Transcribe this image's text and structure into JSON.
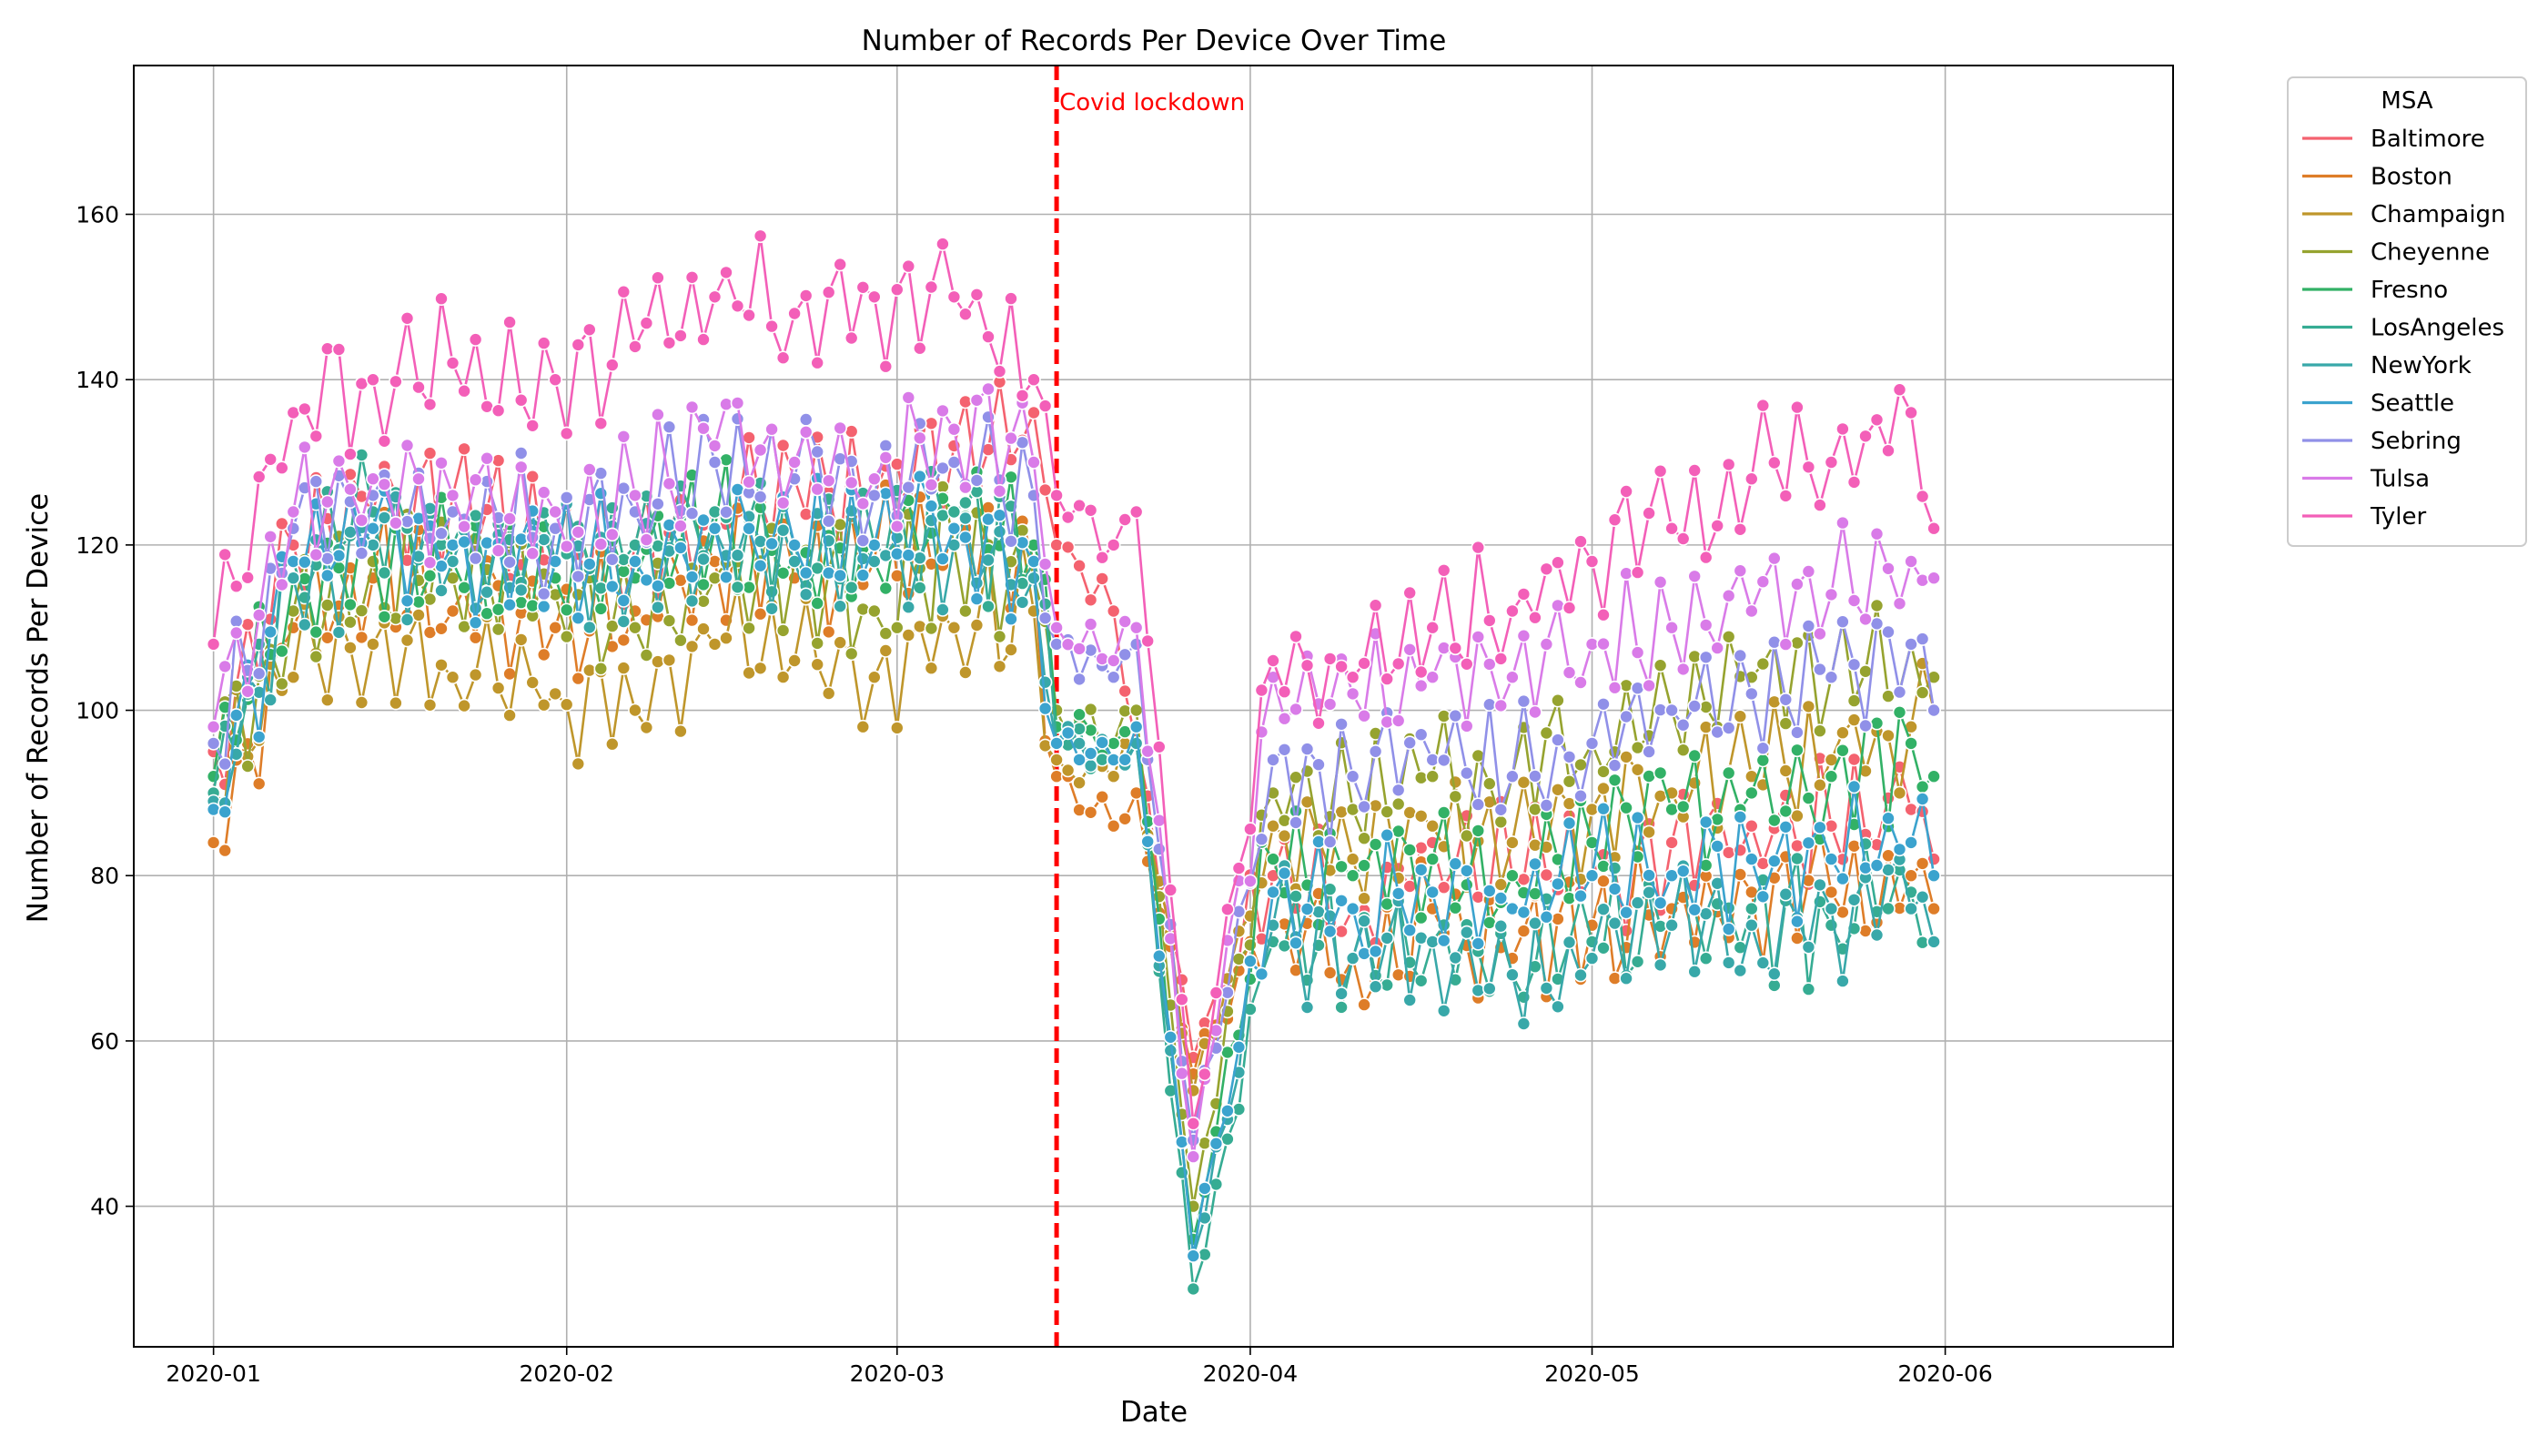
{
  "chart_data": {
    "type": "line",
    "title": "Number of Records Per Device Over Time",
    "xlabel": "Date",
    "ylabel": "Number of Records Per Device",
    "x_ticks": [
      "2020-01",
      "2020-02",
      "2020-03",
      "2020-04",
      "2020-05",
      "2020-06"
    ],
    "y_ticks": [
      40,
      60,
      80,
      100,
      120,
      140,
      160
    ],
    "xlim": [
      "2019-12-25",
      "2020-06-21"
    ],
    "ylim": [
      23,
      178
    ],
    "grid": true,
    "legend": {
      "title": "MSA",
      "placement": "outside-top-right"
    },
    "annotation": {
      "text": "Covid lockdown",
      "date": "2020-03-15",
      "color": "#ff0000"
    },
    "series": [
      {
        "name": "Baltimore",
        "color": "#f4626f",
        "values": [
          [
            1,
            95
          ],
          [
            8,
            120
          ],
          [
            15,
            124
          ],
          [
            22,
            126
          ],
          [
            31,
            118
          ],
          [
            38,
            120
          ],
          [
            45,
            124
          ],
          [
            52,
            128
          ],
          [
            59,
            126
          ],
          [
            66,
            132
          ],
          [
            73,
            136
          ],
          [
            75,
            120
          ],
          [
            80,
            112
          ],
          [
            82,
            96
          ],
          [
            87,
            58
          ],
          [
            94,
            80
          ],
          [
            101,
            76
          ],
          [
            108,
            84
          ],
          [
            115,
            80
          ],
          [
            122,
            80
          ],
          [
            129,
            84
          ],
          [
            136,
            86
          ],
          [
            143,
            86
          ],
          [
            150,
            88
          ],
          [
            152,
            82
          ]
        ]
      },
      {
        "name": "Boston",
        "color": "#de7d28",
        "values": [
          [
            1,
            84
          ],
          [
            8,
            110
          ],
          [
            15,
            116
          ],
          [
            22,
            112
          ],
          [
            31,
            110
          ],
          [
            38,
            112
          ],
          [
            45,
            118
          ],
          [
            52,
            116
          ],
          [
            59,
            118
          ],
          [
            66,
            122
          ],
          [
            73,
            118
          ],
          [
            75,
            92
          ],
          [
            80,
            86
          ],
          [
            82,
            90
          ],
          [
            87,
            56
          ],
          [
            94,
            74
          ],
          [
            101,
            70
          ],
          [
            108,
            76
          ],
          [
            115,
            70
          ],
          [
            122,
            74
          ],
          [
            129,
            76
          ],
          [
            136,
            78
          ],
          [
            143,
            78
          ],
          [
            150,
            80
          ],
          [
            152,
            76
          ]
        ]
      },
      {
        "name": "Champaign",
        "color": "#bf962b",
        "values": [
          [
            1,
            90
          ],
          [
            8,
            104
          ],
          [
            15,
            108
          ],
          [
            22,
            104
          ],
          [
            31,
            102
          ],
          [
            38,
            100
          ],
          [
            45,
            108
          ],
          [
            52,
            106
          ],
          [
            59,
            104
          ],
          [
            66,
            110
          ],
          [
            73,
            112
          ],
          [
            75,
            94
          ],
          [
            80,
            92
          ],
          [
            82,
            96
          ],
          [
            87,
            54
          ],
          [
            94,
            86
          ],
          [
            101,
            82
          ],
          [
            108,
            86
          ],
          [
            115,
            84
          ],
          [
            122,
            88
          ],
          [
            129,
            90
          ],
          [
            136,
            92
          ],
          [
            143,
            94
          ],
          [
            150,
            98
          ],
          [
            152,
            100
          ]
        ]
      },
      {
        "name": "Cheyenne",
        "color": "#96a32f",
        "values": [
          [
            1,
            92
          ],
          [
            8,
            112
          ],
          [
            15,
            118
          ],
          [
            22,
            116
          ],
          [
            31,
            114
          ],
          [
            38,
            110
          ],
          [
            45,
            116
          ],
          [
            52,
            118
          ],
          [
            59,
            112
          ],
          [
            66,
            120
          ],
          [
            73,
            116
          ],
          [
            75,
            100
          ],
          [
            80,
            96
          ],
          [
            82,
            100
          ],
          [
            87,
            40
          ],
          [
            94,
            90
          ],
          [
            101,
            88
          ],
          [
            108,
            92
          ],
          [
            115,
            92
          ],
          [
            122,
            96
          ],
          [
            129,
            100
          ],
          [
            136,
            104
          ],
          [
            143,
            104
          ],
          [
            150,
            108
          ],
          [
            152,
            104
          ]
        ]
      },
      {
        "name": "Fresno",
        "color": "#32b166",
        "values": [
          [
            1,
            92
          ],
          [
            8,
            116
          ],
          [
            15,
            120
          ],
          [
            22,
            118
          ],
          [
            31,
            116
          ],
          [
            38,
            116
          ],
          [
            45,
            122
          ],
          [
            52,
            118
          ],
          [
            59,
            118
          ],
          [
            66,
            124
          ],
          [
            73,
            120
          ],
          [
            75,
            98
          ],
          [
            80,
            96
          ],
          [
            82,
            98
          ],
          [
            87,
            36
          ],
          [
            94,
            82
          ],
          [
            101,
            80
          ],
          [
            108,
            82
          ],
          [
            115,
            80
          ],
          [
            122,
            84
          ],
          [
            129,
            88
          ],
          [
            136,
            90
          ],
          [
            143,
            92
          ],
          [
            150,
            96
          ],
          [
            152,
            92
          ]
        ]
      },
      {
        "name": "LosAngeles",
        "color": "#36ac93",
        "values": [
          [
            1,
            90
          ],
          [
            8,
            118
          ],
          [
            15,
            124
          ],
          [
            22,
            120
          ],
          [
            31,
            118
          ],
          [
            38,
            120
          ],
          [
            45,
            124
          ],
          [
            52,
            120
          ],
          [
            59,
            120
          ],
          [
            66,
            124
          ],
          [
            73,
            118
          ],
          [
            75,
            96
          ],
          [
            80,
            94
          ],
          [
            82,
            96
          ],
          [
            87,
            30
          ],
          [
            94,
            72
          ],
          [
            101,
            70
          ],
          [
            108,
            72
          ],
          [
            115,
            68
          ],
          [
            122,
            72
          ],
          [
            129,
            74
          ],
          [
            136,
            76
          ],
          [
            143,
            74
          ],
          [
            150,
            78
          ],
          [
            152,
            72
          ]
        ]
      },
      {
        "name": "NewYork",
        "color": "#38a8a9",
        "values": [
          [
            1,
            89
          ],
          [
            8,
            116
          ],
          [
            15,
            120
          ],
          [
            22,
            118
          ],
          [
            31,
            118
          ],
          [
            38,
            118
          ],
          [
            45,
            122
          ],
          [
            52,
            118
          ],
          [
            59,
            118
          ],
          [
            66,
            120
          ],
          [
            73,
            116
          ],
          [
            75,
            96
          ],
          [
            80,
            94
          ],
          [
            82,
            96
          ],
          [
            87,
            34
          ],
          [
            94,
            74
          ],
          [
            101,
            70
          ],
          [
            108,
            72
          ],
          [
            115,
            68
          ],
          [
            122,
            70
          ],
          [
            129,
            74
          ],
          [
            136,
            74
          ],
          [
            143,
            76
          ],
          [
            150,
            76
          ],
          [
            152,
            72
          ]
        ]
      },
      {
        "name": "Seattle",
        "color": "#3ba3ce",
        "values": [
          [
            1,
            88
          ],
          [
            8,
            118
          ],
          [
            15,
            122
          ],
          [
            22,
            120
          ],
          [
            31,
            118
          ],
          [
            38,
            118
          ],
          [
            45,
            122
          ],
          [
            52,
            120
          ],
          [
            59,
            120
          ],
          [
            66,
            122
          ],
          [
            73,
            118
          ],
          [
            75,
            96
          ],
          [
            80,
            94
          ],
          [
            82,
            98
          ],
          [
            87,
            34
          ],
          [
            94,
            78
          ],
          [
            101,
            76
          ],
          [
            108,
            78
          ],
          [
            115,
            76
          ],
          [
            122,
            80
          ],
          [
            129,
            80
          ],
          [
            136,
            82
          ],
          [
            143,
            82
          ],
          [
            150,
            84
          ],
          [
            152,
            80
          ]
        ]
      },
      {
        "name": "Sebring",
        "color": "#9090e8",
        "values": [
          [
            1,
            96
          ],
          [
            8,
            122
          ],
          [
            15,
            126
          ],
          [
            22,
            124
          ],
          [
            31,
            122
          ],
          [
            38,
            124
          ],
          [
            45,
            130
          ],
          [
            52,
            128
          ],
          [
            59,
            126
          ],
          [
            66,
            130
          ],
          [
            73,
            126
          ],
          [
            75,
            108
          ],
          [
            80,
            104
          ],
          [
            82,
            108
          ],
          [
            87,
            48
          ],
          [
            94,
            94
          ],
          [
            101,
            92
          ],
          [
            108,
            94
          ],
          [
            115,
            92
          ],
          [
            122,
            96
          ],
          [
            129,
            100
          ],
          [
            136,
            102
          ],
          [
            143,
            104
          ],
          [
            150,
            108
          ],
          [
            152,
            100
          ]
        ]
      },
      {
        "name": "Tulsa",
        "color": "#d97be8",
        "values": [
          [
            1,
            98
          ],
          [
            8,
            124
          ],
          [
            15,
            128
          ],
          [
            22,
            126
          ],
          [
            31,
            124
          ],
          [
            38,
            126
          ],
          [
            45,
            132
          ],
          [
            52,
            130
          ],
          [
            59,
            128
          ],
          [
            66,
            134
          ],
          [
            73,
            130
          ],
          [
            75,
            110
          ],
          [
            80,
            106
          ],
          [
            82,
            110
          ],
          [
            87,
            46
          ],
          [
            94,
            104
          ],
          [
            101,
            102
          ],
          [
            108,
            104
          ],
          [
            115,
            104
          ],
          [
            122,
            108
          ],
          [
            129,
            110
          ],
          [
            136,
            112
          ],
          [
            143,
            114
          ],
          [
            150,
            118
          ],
          [
            152,
            116
          ]
        ]
      },
      {
        "name": "Tyler",
        "color": "#f35fb8",
        "values": [
          [
            1,
            108
          ],
          [
            8,
            136
          ],
          [
            15,
            140
          ],
          [
            22,
            142
          ],
          [
            31,
            140
          ],
          [
            38,
            144
          ],
          [
            45,
            150
          ],
          [
            52,
            148
          ],
          [
            59,
            150
          ],
          [
            66,
            150
          ],
          [
            73,
            140
          ],
          [
            75,
            126
          ],
          [
            80,
            120
          ],
          [
            82,
            124
          ],
          [
            87,
            50
          ],
          [
            94,
            106
          ],
          [
            101,
            104
          ],
          [
            108,
            110
          ],
          [
            115,
            112
          ],
          [
            122,
            118
          ],
          [
            129,
            122
          ],
          [
            136,
            128
          ],
          [
            143,
            130
          ],
          [
            150,
            136
          ],
          [
            152,
            122
          ]
        ]
      }
    ]
  }
}
